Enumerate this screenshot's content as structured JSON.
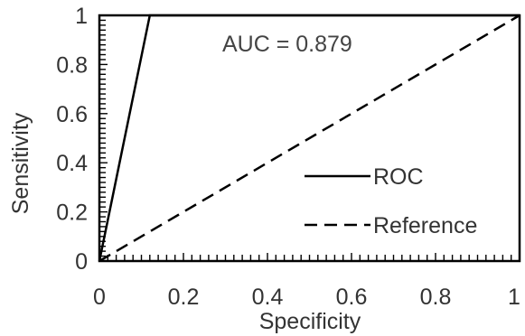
{
  "chart_data": {
    "type": "line",
    "xlabel": "Specificity",
    "ylabel": "Sensitivity",
    "xlim": [
      0,
      1
    ],
    "ylim": [
      0,
      1
    ],
    "grid": false,
    "legend_position": "bottom-right",
    "annotation": "AUC = 0.879",
    "x_ticks": [
      "0",
      "0.2",
      "0.4",
      "0.6",
      "0.8",
      "1"
    ],
    "y_ticks": [
      "0",
      "0.2",
      "0.4",
      "0.6",
      "0.8",
      "1"
    ],
    "series": [
      {
        "name": "ROC",
        "style": "solid",
        "color": "#000000",
        "points": [
          [
            0,
            0
          ],
          [
            0.12,
            1
          ],
          [
            1,
            1
          ]
        ]
      },
      {
        "name": "Reference",
        "style": "dashed",
        "color": "#000000",
        "points": [
          [
            0,
            0
          ],
          [
            1,
            1
          ]
        ]
      }
    ]
  }
}
